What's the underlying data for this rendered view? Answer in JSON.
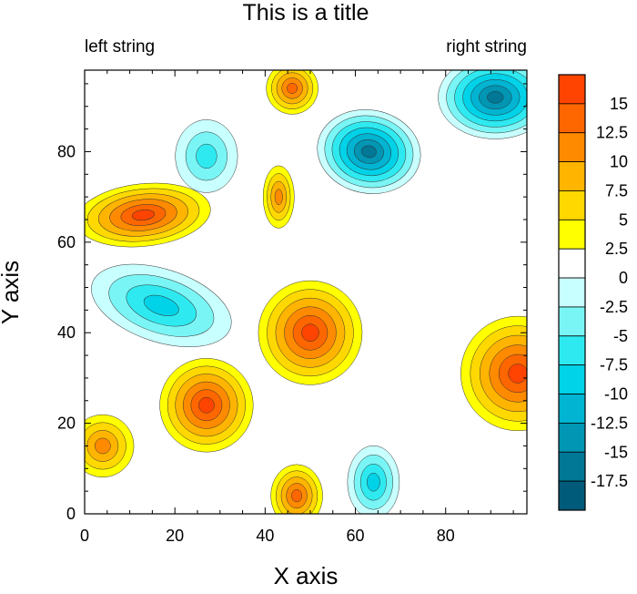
{
  "chart_data": {
    "type": "heatmap",
    "title": "This is a title",
    "left_string": "left string",
    "right_string": "right string",
    "xlabel": "X axis",
    "ylabel": "Y axis",
    "xlim": [
      0,
      98
    ],
    "ylim": [
      0,
      98
    ],
    "xticks": [
      0,
      20,
      40,
      60,
      80
    ],
    "yticks": [
      0,
      20,
      40,
      60,
      80
    ],
    "xtick_labels": [
      "0",
      "20",
      "40",
      "60",
      "80"
    ],
    "ytick_labels": [
      "0",
      "20",
      "40",
      "60",
      "80"
    ],
    "colorbar": {
      "labels": [
        "15",
        "12.5",
        "10",
        "7.5",
        "5",
        "2.5",
        "0",
        "-2.5",
        "-5",
        "-7.5",
        "-10",
        "-12.5",
        "-15",
        "-17.5"
      ],
      "colors": [
        "#fe4400",
        "#fe6600",
        "#fe8a00",
        "#ffb400",
        "#ffd800",
        "#ffff00",
        "#ffffff",
        "#c8ffff",
        "#7af5f5",
        "#2eeaf0",
        "#00d2e8",
        "#00b4d2",
        "#0096b4",
        "#007896",
        "#005a7a"
      ]
    },
    "background_level": 2.5,
    "blobs": [
      {
        "x": 13,
        "y": 66,
        "value": 15,
        "rx": 13,
        "ry": 6,
        "rotate": 6
      },
      {
        "x": 46,
        "y": 94,
        "value": 12.5,
        "rx": 5,
        "ry": 5,
        "rotate": 0
      },
      {
        "x": 43,
        "y": 70,
        "value": 10,
        "rx": 3,
        "ry": 6,
        "rotate": 0
      },
      {
        "x": 50,
        "y": 40,
        "value": 15,
        "rx": 10,
        "ry": 10,
        "rotate": 0
      },
      {
        "x": 27,
        "y": 24,
        "value": 15,
        "rx": 9,
        "ry": 9,
        "rotate": 0
      },
      {
        "x": 47,
        "y": 4,
        "value": 12.5,
        "rx": 5,
        "ry": 6,
        "rotate": 0
      },
      {
        "x": 96,
        "y": 31,
        "value": 15,
        "rx": 11,
        "ry": 11,
        "rotate": 0
      },
      {
        "x": 4,
        "y": 15,
        "value": 10,
        "rx": 6,
        "ry": 6,
        "rotate": 0
      },
      {
        "x": 27,
        "y": 79,
        "value": -7.5,
        "rx": 6,
        "ry": 7,
        "rotate": 0
      },
      {
        "x": 17,
        "y": 46,
        "value": -10,
        "rx": 14,
        "ry": 7,
        "rotate": -18
      },
      {
        "x": 64,
        "y": 7,
        "value": -10,
        "rx": 5,
        "ry": 7,
        "rotate": 0
      },
      {
        "x": 63,
        "y": 80,
        "value": -17.5,
        "rx": 10,
        "ry": 8,
        "rotate": -10
      },
      {
        "x": 91,
        "y": 92,
        "value": -17.5,
        "rx": 11,
        "ry": 8,
        "rotate": 0
      }
    ]
  }
}
